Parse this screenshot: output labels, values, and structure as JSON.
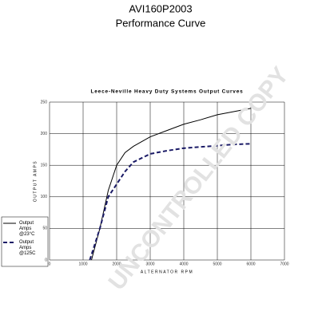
{
  "chart_data": {
    "type": "line",
    "title": "AVI160P2003",
    "subtitle": "Performance Curve",
    "chart_title": "Leece-Neville Heavy Duty Systems Output Curves",
    "x_label": "ALTERNATOR RPM",
    "y_label": "OUTPUT AMPS",
    "watermark": "UNCONTROLLED COPY",
    "xlim": [
      0,
      7000
    ],
    "xticks": [
      0,
      1000,
      2000,
      3000,
      4000,
      5000,
      6000,
      7000
    ],
    "ylim": [
      0,
      250
    ],
    "yticks": [
      0,
      50,
      100,
      150,
      200,
      250
    ],
    "grid": true,
    "legend": "left",
    "series": [
      {
        "name": "Output Amps @23°C",
        "color": "#000000",
        "dash": false,
        "x": [
          1250,
          1500,
          1750,
          2000,
          2250,
          2500,
          3000,
          3500,
          4000,
          4500,
          5000,
          5500,
          6000
        ],
        "values": [
          0,
          50,
          110,
          150,
          170,
          180,
          195,
          205,
          215,
          222,
          230,
          235,
          240
        ]
      },
      {
        "name": "Output Amps @125C",
        "color": "#1a1a66",
        "dash": true,
        "x": [
          1200,
          1500,
          1750,
          2000,
          2250,
          2500,
          3000,
          3500,
          4000,
          4500,
          5000,
          5500,
          6000
        ],
        "values": [
          0,
          50,
          100,
          120,
          140,
          155,
          168,
          173,
          177,
          179,
          181,
          183,
          184
        ]
      }
    ]
  }
}
